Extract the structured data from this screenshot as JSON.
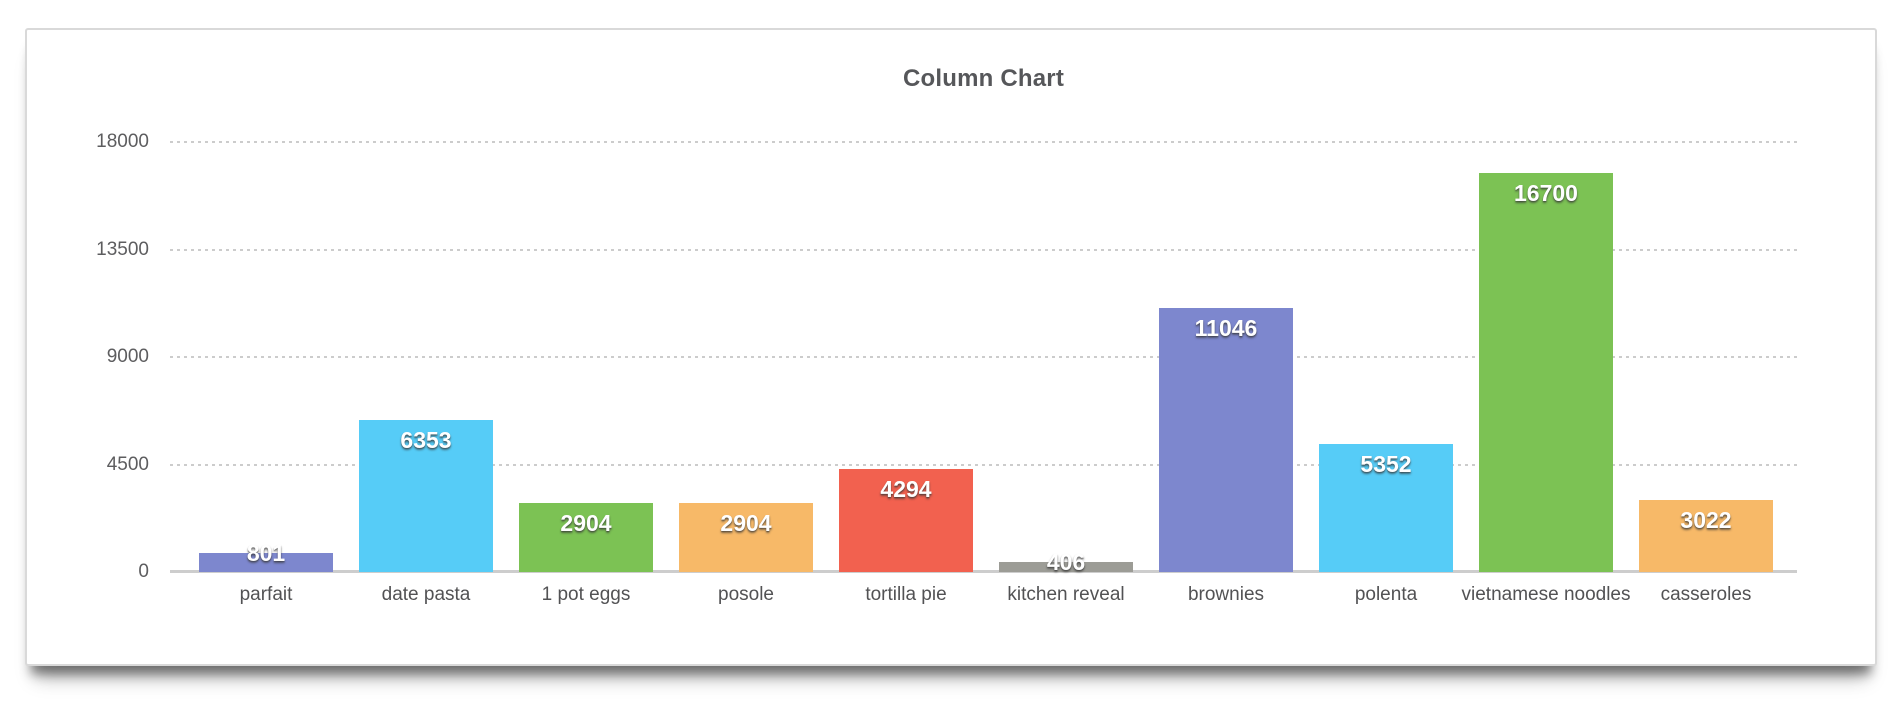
{
  "chart_data": {
    "type": "bar",
    "title": "Column Chart",
    "categories": [
      "parfait",
      "date pasta",
      "1 pot eggs",
      "posole",
      "tortilla pie",
      "kitchen reveal",
      "brownies",
      "polenta",
      "vietnamese noodles",
      "casseroles"
    ],
    "values": [
      801,
      6353,
      2904,
      2904,
      4294,
      406,
      11046,
      5352,
      16700,
      3022
    ],
    "bar_colors": [
      "#7D87CE",
      "#56CCF7",
      "#7CC254",
      "#F7B968",
      "#F2614F",
      "#9C9C96",
      "#7D87CE",
      "#56CCF7",
      "#7CC254",
      "#F7B968"
    ],
    "value_labels": [
      "801",
      "6353",
      "2904",
      "2904",
      "4294",
      "406",
      "11046",
      "5352",
      "16700",
      "3022"
    ],
    "xlabel": "",
    "ylabel": "",
    "ylim": [
      0,
      18000
    ],
    "yticks": [
      0,
      4500,
      9000,
      13500,
      18000
    ],
    "grid": "horizontal-dashed",
    "legend_position": "none"
  },
  "colors": {
    "title_text": "#56575A",
    "axis_tick_text": "#5D5D5F",
    "category_text": "#525254",
    "gridline": "#CCCCCC",
    "axis_line": "#CDCDCD",
    "card_border": "#D9D9D9",
    "card_background": "#FFFFFF",
    "value_label_text": "#FFFFFF"
  }
}
